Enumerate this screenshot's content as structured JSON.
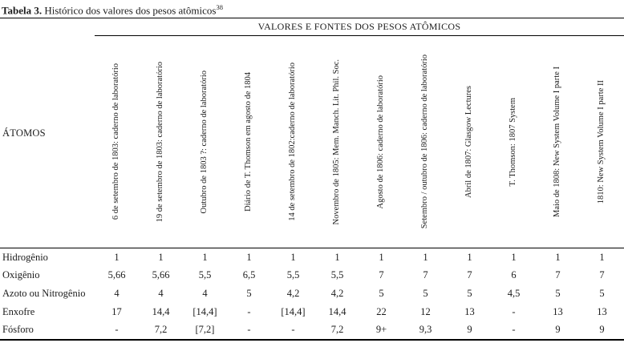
{
  "caption": {
    "label": "Tabela 3.",
    "text": " Histórico dos valores dos pesos atômicos",
    "superscript": "38"
  },
  "table": {
    "span_header": "VALORES E FONTES DOS PESOS ATÔMICOS",
    "row_header": "ÁTOMOS",
    "columns": [
      "6 de setembro de 1803: caderno de laboratório",
      "19 de setembro de 1803: caderno de laboratório",
      "Outubro de 1803 ?: caderno de laboratório",
      "Diário de T. Thomson em agosto de 1804",
      "14 de setembro de 1802:caderno de laboratório",
      "Novembro de 1805: Mem. Manch. Lit. Phil. Soc.",
      "Agosto de 1806: caderno de laboratório",
      "Setembro / outubro de 1806: caderno de laboratório",
      "Abril de 1807: Glasgow Lectures",
      "T. Thomson: 1807 System",
      "Maio de 1808: New System Volume I parte I",
      "1810: New System Volume I parte II"
    ],
    "rows": [
      {
        "label": "Hidrogênio",
        "values": [
          "1",
          "1",
          "1",
          "1",
          "1",
          "1",
          "1",
          "1",
          "1",
          "1",
          "1",
          "1"
        ]
      },
      {
        "label": "Oxigênio",
        "values": [
          "5,66",
          "5,66",
          "5,5",
          "6,5",
          "5,5",
          "5,5",
          "7",
          "7",
          "7",
          "6",
          "7",
          "7"
        ]
      },
      {
        "label": "Azoto ou Nitrogênio",
        "values": [
          "4",
          "4",
          "4",
          "5",
          "4,2",
          "4,2",
          "5",
          "5",
          "5",
          "4,5",
          "5",
          "5"
        ]
      },
      {
        "label": "Enxofre",
        "values": [
          "17",
          "14,4",
          "[14,4]",
          "-",
          "[14,4]",
          "14,4",
          "22",
          "12",
          "13",
          "-",
          "13",
          "13"
        ]
      },
      {
        "label": "Fósforo",
        "values": [
          "-",
          "7,2",
          "[7,2]",
          "-",
          "-",
          "7,2",
          "9+",
          "9,3",
          "9",
          "-",
          "9",
          "9"
        ]
      }
    ]
  }
}
